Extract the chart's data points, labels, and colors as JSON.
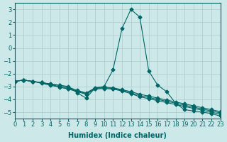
{
  "xlabel": "Humidex (Indice chaleur)",
  "xlim": [
    0,
    23
  ],
  "ylim": [
    -5.5,
    3.5
  ],
  "yticks": [
    -5,
    -4,
    -3,
    -2,
    -1,
    0,
    1,
    2,
    3
  ],
  "xticks": [
    0,
    1,
    2,
    3,
    4,
    5,
    6,
    7,
    8,
    9,
    10,
    11,
    12,
    13,
    14,
    15,
    16,
    17,
    18,
    19,
    20,
    21,
    22,
    23
  ],
  "bg_color": "#cce8e8",
  "line_color": "#006666",
  "grid_color": "#aacccc",
  "y_main": [
    -2.6,
    -2.5,
    -2.6,
    -2.7,
    -2.8,
    -2.9,
    -3.0,
    -3.5,
    -3.9,
    -3.1,
    -3.0,
    -1.7,
    1.5,
    3.0,
    2.4,
    -1.8,
    -2.9,
    -3.4,
    -4.3,
    -4.8,
    -4.9,
    -5.0,
    -5.1,
    -5.3
  ],
  "y_lower1": [
    -2.6,
    -2.5,
    -2.6,
    -2.7,
    -2.8,
    -2.9,
    -3.05,
    -3.3,
    -3.5,
    -3.1,
    -3.05,
    -3.1,
    -3.25,
    -3.4,
    -3.6,
    -3.75,
    -3.9,
    -4.05,
    -4.2,
    -4.35,
    -4.5,
    -4.65,
    -4.8,
    -4.95
  ],
  "y_lower2": [
    -2.6,
    -2.5,
    -2.6,
    -2.7,
    -2.85,
    -3.0,
    -3.15,
    -3.35,
    -3.55,
    -3.15,
    -3.1,
    -3.15,
    -3.3,
    -3.5,
    -3.7,
    -3.85,
    -4.0,
    -4.15,
    -4.3,
    -4.45,
    -4.6,
    -4.75,
    -4.9,
    -5.05
  ],
  "y_lower3": [
    -2.6,
    -2.5,
    -2.6,
    -2.75,
    -2.9,
    -3.05,
    -3.2,
    -3.4,
    -3.6,
    -3.2,
    -3.15,
    -3.2,
    -3.35,
    -3.55,
    -3.8,
    -3.95,
    -4.1,
    -4.25,
    -4.4,
    -4.55,
    -4.7,
    -4.85,
    -5.0,
    -5.15
  ]
}
